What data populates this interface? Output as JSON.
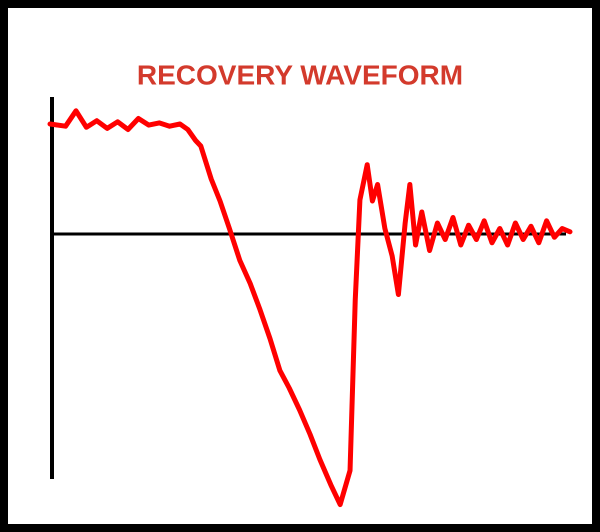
{
  "chart_data": {
    "type": "line",
    "title": "RECOVERY WAVEFORM",
    "x": [
      0,
      3,
      5,
      7,
      9,
      11,
      13,
      15,
      17,
      19,
      21,
      23,
      25,
      26.5,
      28,
      29,
      31,
      32.7,
      34.5,
      36.5,
      38.5,
      40.4,
      42.3,
      44.2,
      46,
      48,
      50,
      51.9,
      54,
      55.8,
      57.7,
      58.7,
      59.6,
      61,
      62,
      63,
      64.4,
      65.8,
      67,
      68.3,
      69.2,
      70.3,
      71.5,
      73,
      74.5,
      76,
      77.5,
      79,
      80.5,
      82,
      83.5,
      85,
      86.5,
      88,
      89.5,
      91,
      92.5,
      94,
      95.5,
      97,
      98.5,
      100
    ],
    "series": [
      {
        "name": "Recovery waveform",
        "color": "#ff0000",
        "values": [
          1.0,
          0.98,
          1.12,
          0.97,
          1.03,
          0.96,
          1.02,
          0.95,
          1.05,
          0.99,
          1.01,
          0.98,
          1.0,
          0.95,
          0.85,
          0.8,
          0.5,
          0.3,
          0.05,
          -0.24,
          -0.45,
          -0.69,
          -0.95,
          -1.24,
          -1.4,
          -1.6,
          -1.82,
          -2.05,
          -2.28,
          -2.46,
          -2.15,
          -0.6,
          0.31,
          0.63,
          0.3,
          0.45,
          0.05,
          -0.2,
          -0.55,
          0.1,
          0.45,
          -0.1,
          0.2,
          -0.15,
          0.1,
          -0.05,
          0.15,
          -0.1,
          0.08,
          -0.05,
          0.12,
          -0.08,
          0.05,
          -0.1,
          0.1,
          -0.05,
          0.07,
          -0.08,
          0.12,
          -0.03,
          0.05,
          0.02
        ]
      }
    ],
    "xlim": [
      0,
      100
    ],
    "ylim": [
      -2.5,
      1.3
    ]
  }
}
